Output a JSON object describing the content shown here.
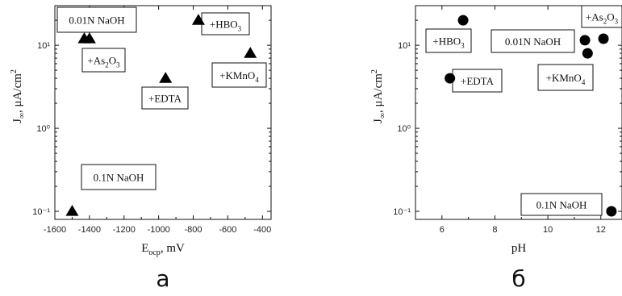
{
  "chart_data": [
    {
      "type": "scatter",
      "panel_label": "а",
      "xlabel": "E",
      "xlabel_sub": "ocp",
      "xlabel_unit": ", mV",
      "ylabel": "J",
      "ylabel_sub": "∞",
      "ylabel_unit": ", μA/cm",
      "ylabel_sup": "2",
      "xlim": [
        -1600,
        -350
      ],
      "ylim": [
        0.08,
        30
      ],
      "yscale": "log",
      "xticks": [
        -1600,
        -1400,
        -1200,
        -1000,
        -800,
        -600,
        -400
      ],
      "xtick_labels": [
        "-1600",
        "-1400",
        "-1200",
        "-1000",
        "-800",
        "-600",
        "-400"
      ],
      "yticks": [
        0.1,
        1,
        10
      ],
      "ytick_labels": [
        "10⁻¹",
        "10⁰",
        "10¹"
      ],
      "marker": "triangle",
      "points": [
        {
          "x": -1500,
          "y": 0.1
        },
        {
          "x": -1430,
          "y": 12
        },
        {
          "x": -1400,
          "y": 12
        },
        {
          "x": -960,
          "y": 4
        },
        {
          "x": -770,
          "y": 20
        },
        {
          "x": -470,
          "y": 8
        }
      ],
      "annotations": [
        {
          "label": "0.01N NaOH"
        },
        {
          "label": "+HBO",
          "sub": "3"
        },
        {
          "label": "+As",
          "sub": "2",
          "rest": "O",
          "sub2": "3"
        },
        {
          "label": "+KMnO",
          "sub": "4"
        },
        {
          "label": "+EDTA"
        },
        {
          "label": "0.1N NaOH"
        }
      ]
    },
    {
      "type": "scatter",
      "panel_label": "б",
      "xlabel": "pH",
      "ylabel": "J",
      "ylabel_sub": "∞",
      "ylabel_unit": ", μA/cm",
      "ylabel_sup": "2",
      "xlim": [
        5,
        12.8
      ],
      "ylim": [
        0.08,
        30
      ],
      "yscale": "log",
      "xticks": [
        6,
        8,
        10,
        12
      ],
      "xtick_labels": [
        "6",
        "8",
        "10",
        "12"
      ],
      "yticks": [
        0.1,
        1,
        10
      ],
      "ytick_labels": [
        "10⁻¹",
        "10⁰",
        "10¹"
      ],
      "marker": "circle",
      "points": [
        {
          "x": 6.3,
          "y": 4
        },
        {
          "x": 6.8,
          "y": 20
        },
        {
          "x": 11.4,
          "y": 11.5
        },
        {
          "x": 11.5,
          "y": 8
        },
        {
          "x": 12.1,
          "y": 12
        },
        {
          "x": 12.4,
          "y": 0.1
        }
      ],
      "annotations": [
        {
          "label": "+HBO",
          "sub": "3"
        },
        {
          "label": "+EDTA"
        },
        {
          "label": "0.01N NaOH"
        },
        {
          "label": "+KMnO",
          "sub": "4"
        },
        {
          "label": "+As",
          "sub": "2",
          "rest": "O",
          "sub2": "3"
        },
        {
          "label": "0.1N NaOH"
        }
      ]
    }
  ]
}
